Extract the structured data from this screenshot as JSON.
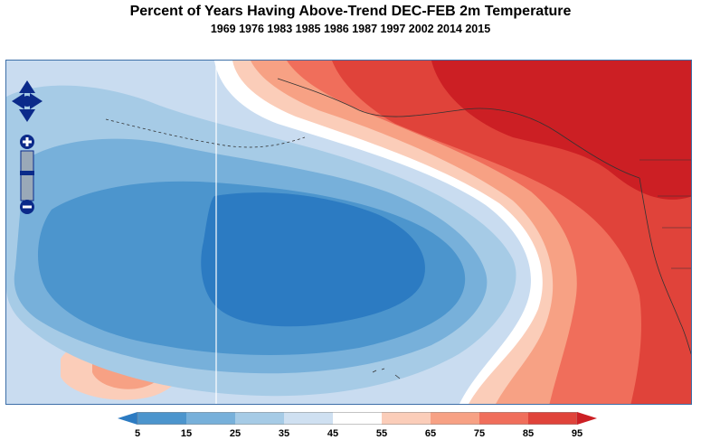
{
  "title": "Percent of Years Having Above-Trend DEC-FEB 2m Temperature",
  "subtitle": "1969 1976 1983 1985 1986 1987 1997 2002 2014 2015",
  "legend": {
    "ticks": [
      "5",
      "15",
      "25",
      "35",
      "45",
      "55",
      "65",
      "75",
      "85",
      "95"
    ],
    "colors": [
      "#2c7bc2",
      "#4c95cd",
      "#77b0da",
      "#a6cbe6",
      "#cfe0f1",
      "#ffffff",
      "#fbcdb9",
      "#f7a184",
      "#f06e5b",
      "#e0433a",
      "#cc1f24"
    ]
  },
  "map_controls": {
    "pan_icon": "pan-arrows-icon",
    "zoom_in_icon": "plus-icon",
    "zoom_out_icon": "minus-icon"
  }
}
